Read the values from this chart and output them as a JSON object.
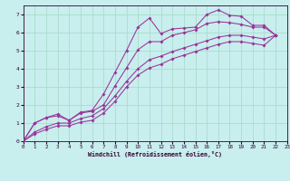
{
  "bg_color": "#c8eeee",
  "grid_color": "#aaddcc",
  "line_color": "#993399",
  "axis_label_color": "#330033",
  "xlabel": "Windchill (Refroidissement éolien,°C)",
  "xlim": [
    0,
    23
  ],
  "ylim": [
    0,
    7.5
  ],
  "xticks": [
    0,
    1,
    2,
    3,
    4,
    5,
    6,
    7,
    8,
    9,
    10,
    11,
    12,
    13,
    14,
    15,
    16,
    17,
    18,
    19,
    20,
    21,
    22,
    23
  ],
  "yticks": [
    0,
    1,
    2,
    3,
    4,
    5,
    6,
    7
  ],
  "lines": [
    {
      "x": [
        0,
        1,
        2,
        3,
        4,
        5,
        6,
        7,
        8,
        9,
        10,
        11,
        12,
        13,
        14,
        15,
        16,
        17,
        18,
        19,
        20,
        21,
        22,
        23
      ],
      "y": [
        0,
        1.0,
        1.3,
        1.5,
        1.15,
        1.6,
        1.7,
        2.6,
        3.8,
        5.0,
        6.3,
        6.8,
        5.95,
        6.2,
        6.25,
        6.3,
        7.0,
        7.25,
        6.95,
        6.9,
        6.4,
        6.4,
        5.85,
        null
      ]
    },
    {
      "x": [
        0,
        1,
        2,
        3,
        4,
        5,
        6,
        7,
        8,
        9,
        10,
        11,
        12,
        13,
        14,
        15,
        16,
        17,
        18,
        19,
        20,
        21,
        22,
        23
      ],
      "y": [
        0,
        1.0,
        1.3,
        1.4,
        1.15,
        1.55,
        1.65,
        2.0,
        3.05,
        4.05,
        5.05,
        5.5,
        5.5,
        5.85,
        6.0,
        6.15,
        6.5,
        6.6,
        6.55,
        6.45,
        6.3,
        6.3,
        5.85,
        null
      ]
    },
    {
      "x": [
        0,
        1,
        2,
        3,
        4,
        5,
        6,
        7,
        8,
        9,
        10,
        11,
        12,
        13,
        14,
        15,
        16,
        17,
        18,
        19,
        20,
        21,
        22,
        23
      ],
      "y": [
        0,
        0.5,
        0.8,
        1.0,
        1.0,
        1.25,
        1.4,
        1.8,
        2.5,
        3.3,
        4.0,
        4.5,
        4.7,
        4.95,
        5.15,
        5.35,
        5.55,
        5.75,
        5.85,
        5.85,
        5.75,
        5.65,
        5.85,
        null
      ]
    },
    {
      "x": [
        0,
        1,
        2,
        3,
        4,
        5,
        6,
        7,
        8,
        9,
        10,
        11,
        12,
        13,
        14,
        15,
        16,
        17,
        18,
        19,
        20,
        21,
        22,
        23
      ],
      "y": [
        0,
        0.4,
        0.65,
        0.85,
        0.85,
        1.05,
        1.15,
        1.55,
        2.2,
        3.0,
        3.65,
        4.05,
        4.25,
        4.55,
        4.75,
        4.95,
        5.15,
        5.35,
        5.5,
        5.5,
        5.4,
        5.3,
        5.85,
        null
      ]
    }
  ]
}
